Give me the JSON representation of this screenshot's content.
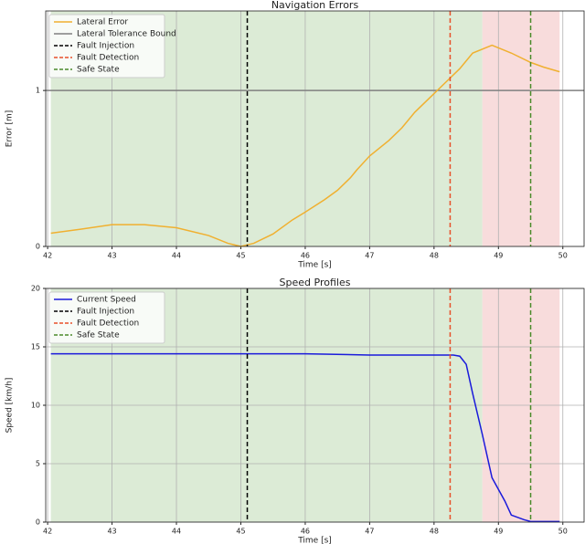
{
  "chart_data": [
    {
      "type": "line",
      "title": "Navigation Errors",
      "xlabel": "Time [s]",
      "ylabel": "Error [m]",
      "x": [
        42.05,
        42.5,
        43,
        43.5,
        44,
        44.5,
        44.8,
        45.0,
        45.2,
        45.5,
        45.8,
        46.0,
        46.3,
        46.5,
        46.7,
        46.8,
        47.0,
        47.3,
        47.5,
        47.7,
        48.0,
        48.2,
        48.4,
        48.6,
        48.9,
        49.2,
        49.5,
        49.7,
        49.95
      ],
      "series": [
        {
          "name": "Lateral Error",
          "color": "#f0b030",
          "values": [
            0.085,
            0.11,
            0.14,
            0.14,
            0.12,
            0.07,
            0.02,
            0.0,
            0.02,
            0.08,
            0.17,
            0.22,
            0.3,
            0.36,
            0.44,
            0.49,
            0.58,
            0.68,
            0.76,
            0.86,
            0.98,
            1.06,
            1.14,
            1.24,
            1.29,
            1.24,
            1.18,
            1.15,
            1.12
          ]
        }
      ],
      "hlines": [
        {
          "name": "Lateral Tolerance Bound",
          "color": "#808080",
          "y": 1
        }
      ],
      "vlines": [
        {
          "name": "Fault Injection",
          "color": "#000000",
          "x": 45.1
        },
        {
          "name": "Fault Detection",
          "color": "#e8502a",
          "x": 48.25
        },
        {
          "name": "Safe State",
          "color": "#4a8a2a",
          "x": 49.5
        }
      ],
      "spans": [
        {
          "color": "#dcebd6",
          "x": [
            42.05,
            48.75
          ]
        },
        {
          "color": "#f8dcdc",
          "x": [
            48.75,
            49.95
          ]
        }
      ],
      "xlim": [
        41.97,
        50.33
      ],
      "ylim": [
        0,
        1.51
      ],
      "xticks": [
        42,
        43,
        44,
        45,
        46,
        47,
        48,
        49,
        50
      ],
      "yticks": [
        0,
        1
      ],
      "grid": true,
      "legend": "upper left"
    },
    {
      "type": "line",
      "title": "Speed Profiles",
      "xlabel": "Time [s]",
      "ylabel": "Speed [km/h]",
      "x": [
        42.05,
        43,
        44,
        45,
        46,
        47,
        48,
        48.3,
        48.4,
        48.5,
        48.6,
        48.75,
        48.9,
        49.1,
        49.2,
        49.4,
        49.5,
        49.95
      ],
      "series": [
        {
          "name": "Current Speed",
          "color": "#1a1adb",
          "values": [
            14.4,
            14.4,
            14.4,
            14.4,
            14.4,
            14.3,
            14.3,
            14.3,
            14.2,
            13.5,
            11,
            7.5,
            3.8,
            1.8,
            0.6,
            0.2,
            0.05,
            0.05
          ]
        }
      ],
      "hlines": [],
      "vlines": [
        {
          "name": "Fault Injection",
          "color": "#000000",
          "x": 45.1
        },
        {
          "name": "Fault Detection",
          "color": "#e8502a",
          "x": 48.25
        },
        {
          "name": "Safe State",
          "color": "#4a8a2a",
          "x": 49.5
        }
      ],
      "spans": [
        {
          "color": "#dcebd6",
          "x": [
            42.05,
            48.75
          ]
        },
        {
          "color": "#f8dcdc",
          "x": [
            48.75,
            49.95
          ]
        }
      ],
      "xlim": [
        41.97,
        50.33
      ],
      "ylim": [
        0,
        20
      ],
      "xticks": [
        42,
        43,
        44,
        45,
        46,
        47,
        48,
        49,
        50
      ],
      "yticks": [
        0,
        5,
        10,
        15,
        20
      ],
      "grid": true,
      "legend": "upper left"
    }
  ]
}
